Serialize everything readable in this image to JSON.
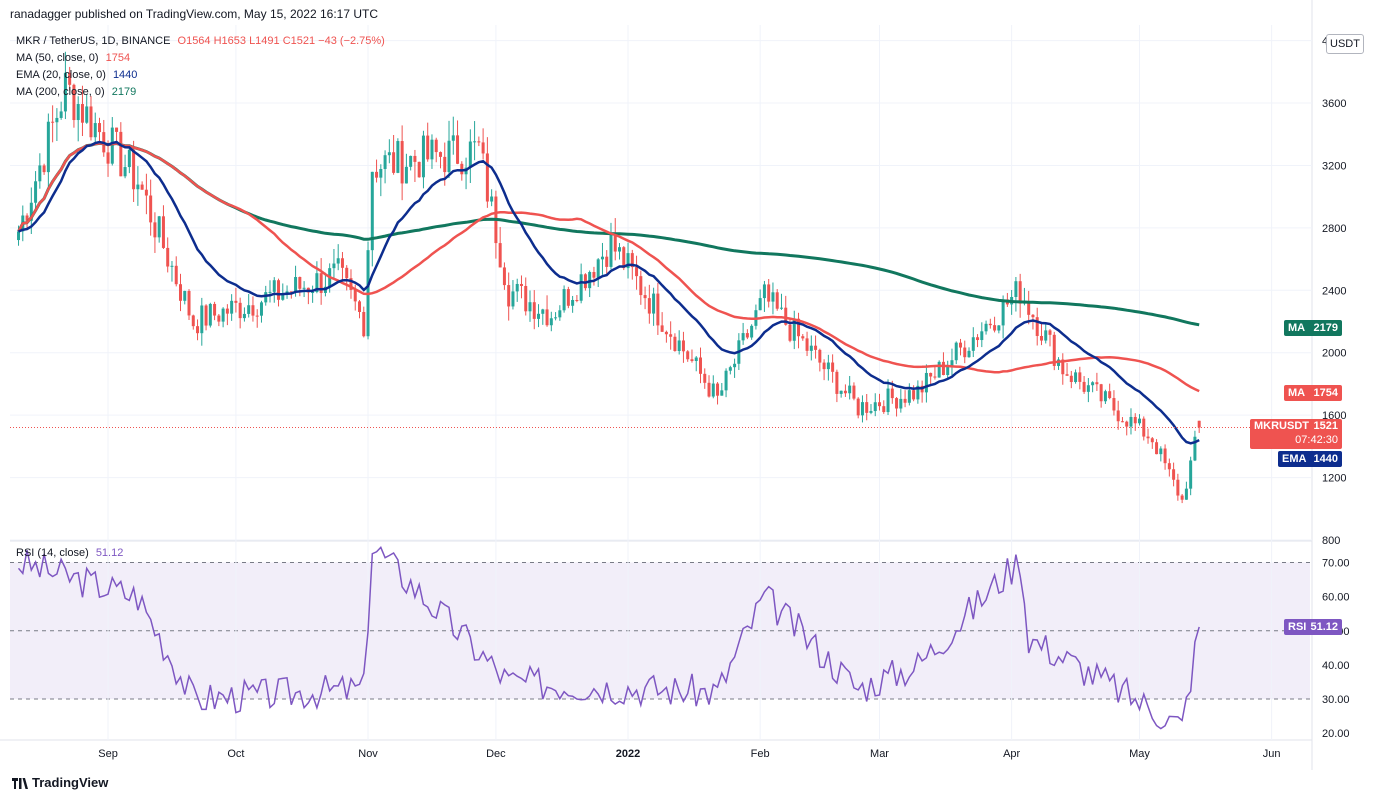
{
  "header": {
    "publisher_line": "ranadagger published on TradingView.com, May 15, 2022 16:17 UTC"
  },
  "legend": {
    "symbol_line": "MKR / TetherUS, 1D, BINANCE",
    "ohlc": "O1564 H1653 L1491 C1521 −43 (−2.75%)",
    "ma50_label": "MA (50, close, 0)",
    "ma50_value": "1754",
    "ema20_label": "EMA (20, close, 0)",
    "ema20_value": "1440",
    "ma200_label": "MA (200, close, 0)",
    "ma200_value": "2179",
    "rsi_label": "RSI (14, close)",
    "rsi_value": "51.12"
  },
  "currency_button": "USDT",
  "footer_logo": "TradingView",
  "colors": {
    "up": "#26a69a",
    "down": "#ef5350",
    "ma50": "#ef5350",
    "ema20": "#0d2d8e",
    "ma200": "#11775e",
    "rsi": "#7e57c2"
  },
  "price_tags": {
    "ma200": {
      "label": "MA",
      "value": "2179"
    },
    "ma50": {
      "label": "MA",
      "value": "1754"
    },
    "last": {
      "label": "MKRUSDT",
      "value": "1521",
      "countdown": "07:42:30"
    },
    "ema20": {
      "label": "EMA",
      "value": "1440"
    },
    "rsi": {
      "label": "RSI",
      "value": "51.12"
    }
  },
  "chart_data": [
    {
      "type": "candlestick",
      "title": "MKR / TetherUS, 1D, BINANCE",
      "ylim": [
        800,
        4100
      ],
      "y_ticks": [
        "800",
        "1200",
        "1600",
        "2000",
        "2400",
        "2800",
        "3200",
        "3600",
        "4000"
      ],
      "x_ticks": [
        "Sep",
        "Oct",
        "Nov",
        "Dec",
        "2022",
        "Feb",
        "Mar",
        "Apr",
        "May",
        "Jun"
      ],
      "key_points": [
        {
          "date": "2021-08-11",
          "close": 2780
        },
        {
          "date": "2021-08-22",
          "close": 3700
        },
        {
          "date": "2021-09-08",
          "close": 3100
        },
        {
          "date": "2021-09-21",
          "close": 2200
        },
        {
          "date": "2021-10-25",
          "close": 2500
        },
        {
          "date": "2021-10-31",
          "close": 2200
        },
        {
          "date": "2021-11-02",
          "close": 3200
        },
        {
          "date": "2021-11-27",
          "close": 3300
        },
        {
          "date": "2021-12-04",
          "close": 2400
        },
        {
          "date": "2021-12-14",
          "close": 2250
        },
        {
          "date": "2021-12-28",
          "close": 2700
        },
        {
          "date": "2022-01-22",
          "close": 1700
        },
        {
          "date": "2022-02-02",
          "close": 2350
        },
        {
          "date": "2022-02-24",
          "close": 1650
        },
        {
          "date": "2022-03-10",
          "close": 1750
        },
        {
          "date": "2022-04-03",
          "close": 2400
        },
        {
          "date": "2022-04-13",
          "close": 1900
        },
        {
          "date": "2022-05-04",
          "close": 1450
        },
        {
          "date": "2022-05-11",
          "close": 1050
        },
        {
          "date": "2022-05-15",
          "open": 1564,
          "high": 1653,
          "low": 1491,
          "close": 1521
        }
      ],
      "series": [
        {
          "name": "MA (50, close, 0)",
          "last": 1754
        },
        {
          "name": "EMA (20, close, 0)",
          "last": 1440
        },
        {
          "name": "MA (200, close, 0)",
          "last": 2179
        }
      ],
      "last_price": 1521
    },
    {
      "type": "line",
      "title": "RSI (14, close)",
      "ylim": [
        18,
        76
      ],
      "y_ticks": [
        "20.00",
        "30.00",
        "40.00",
        "50.00",
        "60.00",
        "70.00"
      ],
      "bands": [
        30,
        70
      ],
      "key_points": [
        {
          "date": "2021-08-11",
          "value": 70
        },
        {
          "date": "2021-09-08",
          "value": 60
        },
        {
          "date": "2021-09-21",
          "value": 30
        },
        {
          "date": "2021-10-31",
          "value": 33
        },
        {
          "date": "2021-11-02",
          "value": 75
        },
        {
          "date": "2021-12-04",
          "value": 35
        },
        {
          "date": "2022-01-22",
          "value": 32
        },
        {
          "date": "2022-02-02",
          "value": 60
        },
        {
          "date": "2022-02-24",
          "value": 33
        },
        {
          "date": "2022-03-10",
          "value": 40
        },
        {
          "date": "2022-04-03",
          "value": 71
        },
        {
          "date": "2022-04-05",
          "value": 48
        },
        {
          "date": "2022-05-11",
          "value": 22
        },
        {
          "date": "2022-05-15",
          "value": 51.12
        }
      ],
      "last": 51.12
    }
  ]
}
